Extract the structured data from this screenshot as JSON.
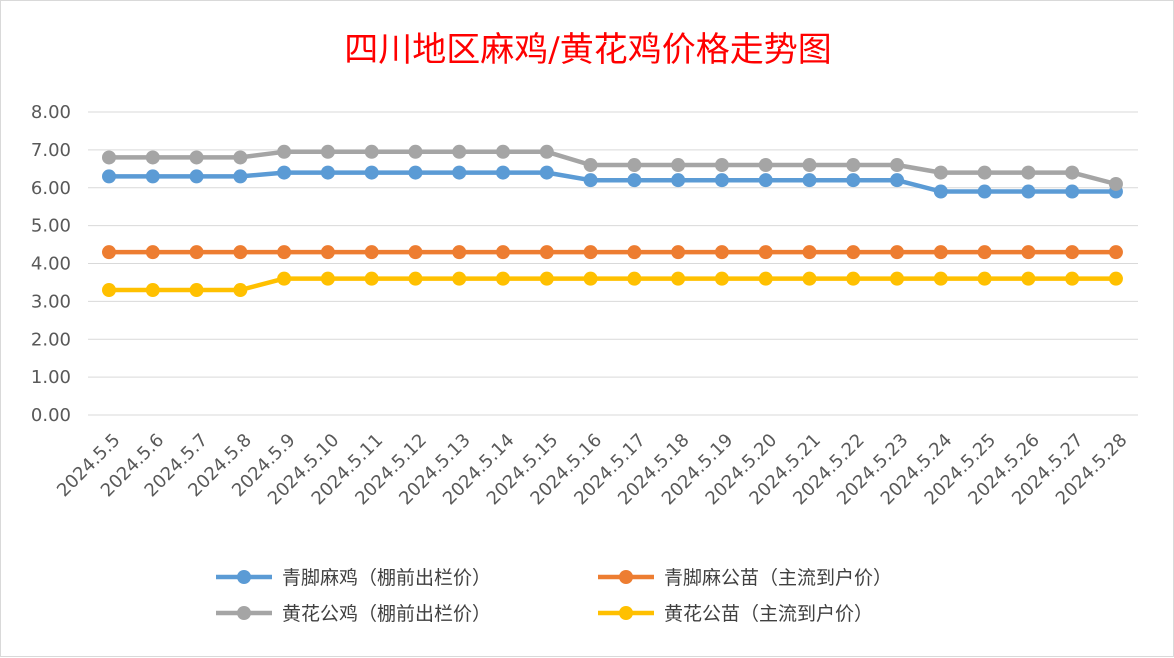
{
  "chart_data": {
    "type": "line",
    "title": "四川地区麻鸡/黄花鸡价格走势图",
    "xlabel": "",
    "ylabel": "",
    "ylim": [
      0,
      8
    ],
    "y_ticks": [
      "0.00",
      "1.00",
      "2.00",
      "3.00",
      "4.00",
      "5.00",
      "6.00",
      "7.00",
      "8.00"
    ],
    "grid": true,
    "legend_position": "bottom",
    "categories": [
      "2024.5.5",
      "2024.5.6",
      "2024.5.7",
      "2024.5.8",
      "2024.5.9",
      "2024.5.10",
      "2024.5.11",
      "2024.5.12",
      "2024.5.13",
      "2024.5.14",
      "2024.5.15",
      "2024.5.16",
      "2024.5.17",
      "2024.5.18",
      "2024.5.19",
      "2024.5.20",
      "2024.5.21",
      "2024.5.22",
      "2024.5.23",
      "2024.5.24",
      "2024.5.25",
      "2024.5.26",
      "2024.5.27",
      "2024.5.28"
    ],
    "series": [
      {
        "name": "青脚麻鸡（棚前出栏价）",
        "color": "#5b9bd5",
        "values": [
          6.3,
          6.3,
          6.3,
          6.3,
          6.4,
          6.4,
          6.4,
          6.4,
          6.4,
          6.4,
          6.4,
          6.2,
          6.2,
          6.2,
          6.2,
          6.2,
          6.2,
          6.2,
          6.2,
          5.9,
          5.9,
          5.9,
          5.9,
          5.9
        ]
      },
      {
        "name": "青脚麻公苗（主流到户价）",
        "color": "#ed7d31",
        "values": [
          4.3,
          4.3,
          4.3,
          4.3,
          4.3,
          4.3,
          4.3,
          4.3,
          4.3,
          4.3,
          4.3,
          4.3,
          4.3,
          4.3,
          4.3,
          4.3,
          4.3,
          4.3,
          4.3,
          4.3,
          4.3,
          4.3,
          4.3,
          4.3
        ]
      },
      {
        "name": "黄花公鸡（棚前出栏价）",
        "color": "#a5a5a5",
        "values": [
          6.8,
          6.8,
          6.8,
          6.8,
          6.95,
          6.95,
          6.95,
          6.95,
          6.95,
          6.95,
          6.95,
          6.6,
          6.6,
          6.6,
          6.6,
          6.6,
          6.6,
          6.6,
          6.6,
          6.4,
          6.4,
          6.4,
          6.4,
          6.1
        ]
      },
      {
        "name": "黄花公苗（主流到户价）",
        "color": "#ffc000",
        "values": [
          3.3,
          3.3,
          3.3,
          3.3,
          3.6,
          3.6,
          3.6,
          3.6,
          3.6,
          3.6,
          3.6,
          3.6,
          3.6,
          3.6,
          3.6,
          3.6,
          3.6,
          3.6,
          3.6,
          3.6,
          3.6,
          3.6,
          3.6,
          3.6
        ]
      }
    ],
    "legend_order": [
      0,
      1,
      2,
      3
    ],
    "gridline_color": "#d9d9d9"
  }
}
